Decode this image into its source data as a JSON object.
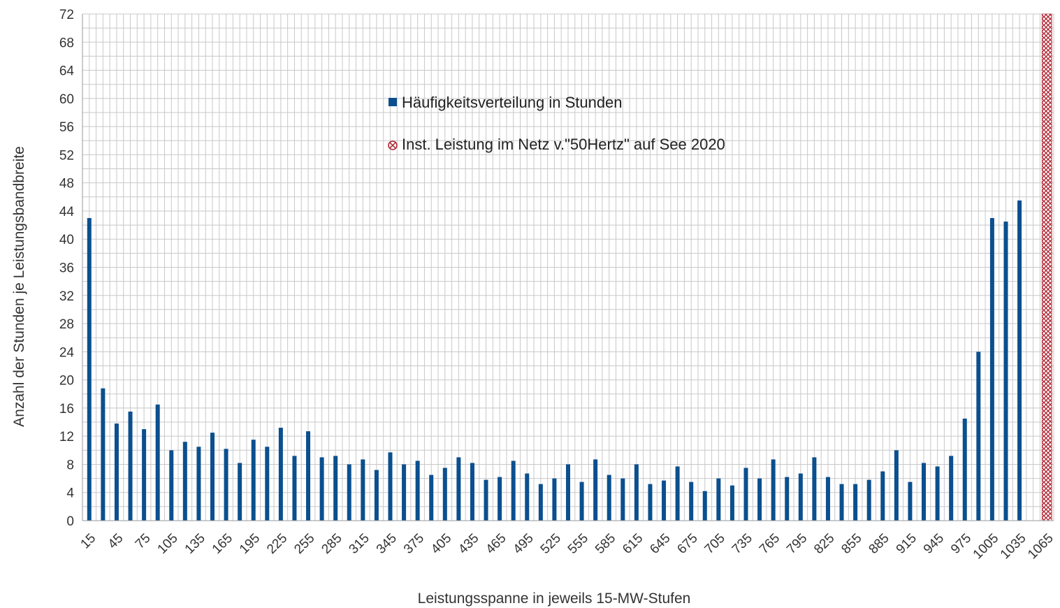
{
  "chart_data": {
    "type": "bar",
    "ylabel": "Anzahl der Stunden je Leistungsbandbreite",
    "xlabel": "Leistungsspanne in jeweils 15-MW-Stufen",
    "ylim": [
      0,
      72
    ],
    "y_ticks": [
      0,
      4,
      8,
      12,
      16,
      20,
      24,
      28,
      32,
      36,
      40,
      44,
      48,
      52,
      56,
      60,
      64,
      68,
      72
    ],
    "x_ticks": [
      "15",
      "45",
      "75",
      "105",
      "135",
      "165",
      "195",
      "225",
      "255",
      "285",
      "315",
      "345",
      "375",
      "405",
      "435",
      "465",
      "495",
      "525",
      "555",
      "585",
      "615",
      "645",
      "675",
      "705",
      "735",
      "765",
      "795",
      "825",
      "855",
      "885",
      "915",
      "945",
      "975",
      "1005",
      "1035",
      "1065"
    ],
    "grid": true,
    "legend_position": "top-center",
    "categories": [
      15,
      30,
      45,
      60,
      75,
      90,
      105,
      120,
      135,
      150,
      165,
      180,
      195,
      210,
      225,
      240,
      255,
      270,
      285,
      300,
      315,
      330,
      345,
      360,
      375,
      390,
      405,
      420,
      435,
      450,
      465,
      480,
      495,
      510,
      525,
      540,
      555,
      570,
      585,
      600,
      615,
      630,
      645,
      660,
      675,
      690,
      705,
      720,
      735,
      750,
      765,
      780,
      795,
      810,
      825,
      840,
      855,
      870,
      885,
      900,
      915,
      930,
      945,
      960,
      975,
      990,
      1005,
      1020,
      1035
    ],
    "series": [
      {
        "name": "Häufigkeitsverteilung in Stunden",
        "color": "#0b4f8e",
        "values": [
          43,
          18.8,
          13.8,
          15.5,
          13,
          16.5,
          10,
          11.2,
          10.5,
          12.5,
          10.2,
          8.2,
          11.5,
          10.5,
          13.2,
          9.2,
          12.7,
          9,
          9.2,
          8,
          8.7,
          7.2,
          9.7,
          8,
          8.5,
          6.5,
          7.5,
          9,
          8.2,
          5.8,
          6.2,
          8.5,
          6.7,
          5.2,
          6,
          8,
          5.5,
          8.7,
          6.5,
          6,
          8,
          5.2,
          5.7,
          7.7,
          5.5,
          4.2,
          6,
          5,
          7.5,
          6,
          8.7,
          6.2,
          6.7,
          9,
          6.2,
          5.2,
          5.2,
          5.8,
          7,
          10,
          5.5,
          8.2,
          7.7,
          9.2,
          14.5,
          24,
          43,
          42.5,
          45.5
        ]
      },
      {
        "name": "Inst. Leistung im Netz v.\"50Hertz\" auf See 2020",
        "color": "#b0202e",
        "x": 1065,
        "value": 72
      }
    ]
  }
}
